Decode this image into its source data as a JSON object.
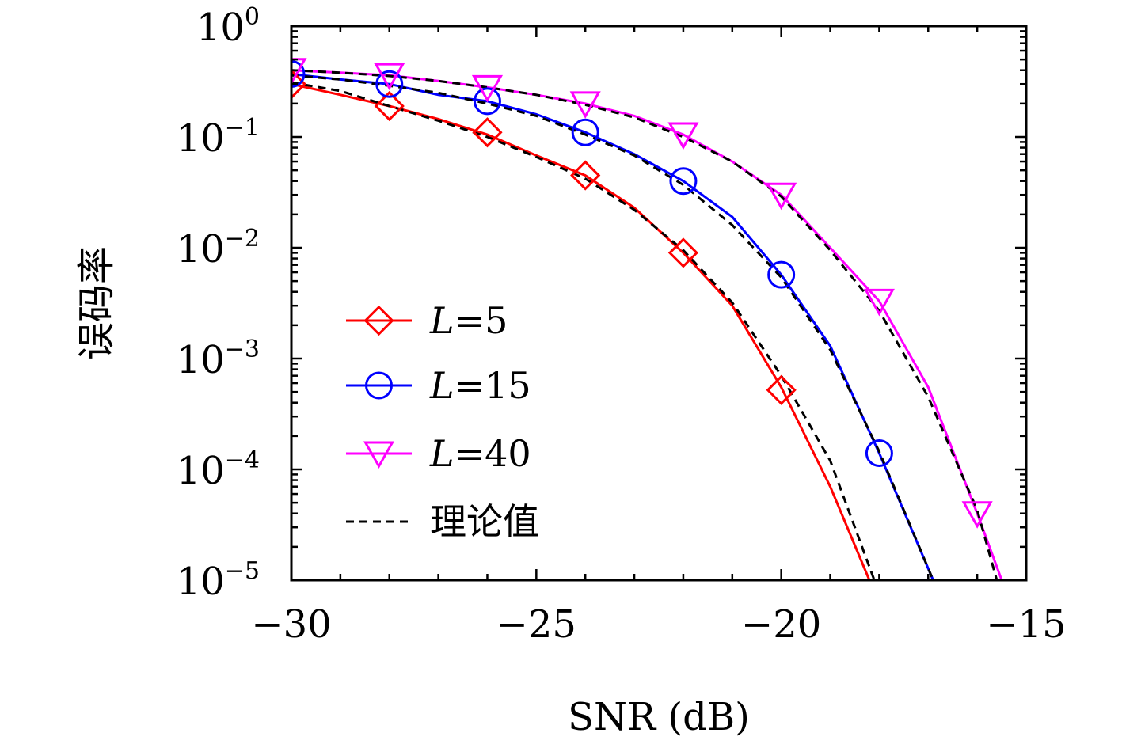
{
  "chart_data": {
    "type": "line",
    "xlabel": "SNR (dB)",
    "ylabel": "误码率",
    "xlim": [
      -30,
      -15
    ],
    "ylim": [
      1e-05,
      1
    ],
    "yscale": "log",
    "xticks": [
      -30,
      -25,
      -20,
      -15
    ],
    "xtick_labels": [
      "−30",
      "−25",
      "−20",
      "−15"
    ],
    "yticks": [
      {
        "value": 1,
        "base": "10",
        "exp": "0"
      },
      {
        "value": 0.1,
        "base": "10",
        "exp": "−1"
      },
      {
        "value": 0.01,
        "base": "10",
        "exp": "−2"
      },
      {
        "value": 0.001,
        "base": "10",
        "exp": "−3"
      },
      {
        "value": 0.0001,
        "base": "10",
        "exp": "−4"
      },
      {
        "value": 1e-05,
        "base": "10",
        "exp": "−5"
      }
    ],
    "grid": false,
    "legend_position": "lower-left",
    "series": [
      {
        "name": "L=5",
        "legend_var": "L",
        "legend_rest": "=5",
        "color": "#ff0000",
        "marker": "diamond",
        "x": [
          -30,
          -29,
          -28,
          -27,
          -26,
          -25,
          -24,
          -23,
          -22,
          -21,
          -20,
          -19,
          -18.2
        ],
        "y": [
          0.3,
          0.24,
          0.19,
          0.145,
          0.105,
          0.068,
          0.045,
          0.023,
          0.009,
          0.003,
          0.00055,
          7e-05,
          1e-05
        ],
        "marker_x": [
          -30,
          -28,
          -26,
          -24,
          -22,
          -20
        ],
        "marker_y": [
          0.3,
          0.19,
          0.11,
          0.045,
          0.009,
          0.00052
        ]
      },
      {
        "name": "L=15",
        "legend_var": "L",
        "legend_rest": "=15",
        "color": "#0000ff",
        "marker": "circle",
        "x": [
          -30,
          -29,
          -28,
          -27,
          -26,
          -25,
          -24,
          -23,
          -22,
          -21,
          -20,
          -19,
          -18,
          -16.9
        ],
        "y": [
          0.37,
          0.33,
          0.3,
          0.24,
          0.21,
          0.16,
          0.11,
          0.07,
          0.04,
          0.019,
          0.0057,
          0.0013,
          0.00014,
          1e-05
        ],
        "marker_x": [
          -30,
          -28,
          -26,
          -24,
          -22,
          -20,
          -18
        ],
        "marker_y": [
          0.37,
          0.3,
          0.21,
          0.11,
          0.04,
          0.0057,
          0.00014
        ]
      },
      {
        "name": "L=40",
        "legend_var": "L",
        "legend_rest": "=40",
        "color": "#ff00ff",
        "marker": "triangle-down",
        "x": [
          -30,
          -29,
          -28,
          -27,
          -26,
          -25,
          -24,
          -23,
          -22,
          -21,
          -20,
          -19,
          -18,
          -17,
          -16,
          -15.5
        ],
        "y": [
          0.4,
          0.38,
          0.36,
          0.32,
          0.28,
          0.24,
          0.2,
          0.155,
          0.105,
          0.06,
          0.03,
          0.01,
          0.0033,
          0.00055,
          4e-05,
          1e-05
        ],
        "marker_x": [
          -30,
          -28,
          -26,
          -24,
          -22,
          -20,
          -18,
          -16
        ],
        "marker_y": [
          0.4,
          0.36,
          0.28,
          0.2,
          0.105,
          0.03,
          0.0033,
          4e-05
        ]
      },
      {
        "name": "理论值",
        "color": "#000000",
        "marker": "none",
        "dashed": true,
        "curves": [
          {
            "x": [
              -30,
              -29,
              -28,
              -27,
              -26,
              -25,
              -24,
              -23,
              -22,
              -21,
              -20,
              -19,
              -18.1
            ],
            "y": [
              0.31,
              0.26,
              0.19,
              0.14,
              0.1,
              0.066,
              0.042,
              0.022,
              0.0095,
              0.0032,
              0.0007,
              0.00012,
              1e-05
            ]
          },
          {
            "x": [
              -30,
              -29,
              -28,
              -27,
              -26,
              -25,
              -24,
              -23,
              -22,
              -21,
              -20,
              -19,
              -18,
              -16.9
            ],
            "y": [
              0.36,
              0.33,
              0.29,
              0.25,
              0.2,
              0.155,
              0.105,
              0.068,
              0.037,
              0.016,
              0.0054,
              0.0012,
              0.000145,
              1e-05
            ]
          },
          {
            "x": [
              -30,
              -29,
              -28,
              -27,
              -26,
              -25,
              -24,
              -23,
              -22,
              -21,
              -20,
              -19,
              -18,
              -17,
              -16,
              -15.6
            ],
            "y": [
              0.4,
              0.38,
              0.355,
              0.32,
              0.28,
              0.24,
              0.195,
              0.15,
              0.1,
              0.06,
              0.029,
              0.0095,
              0.0027,
              0.00045,
              4.3e-05,
              1e-05
            ]
          }
        ]
      }
    ]
  }
}
